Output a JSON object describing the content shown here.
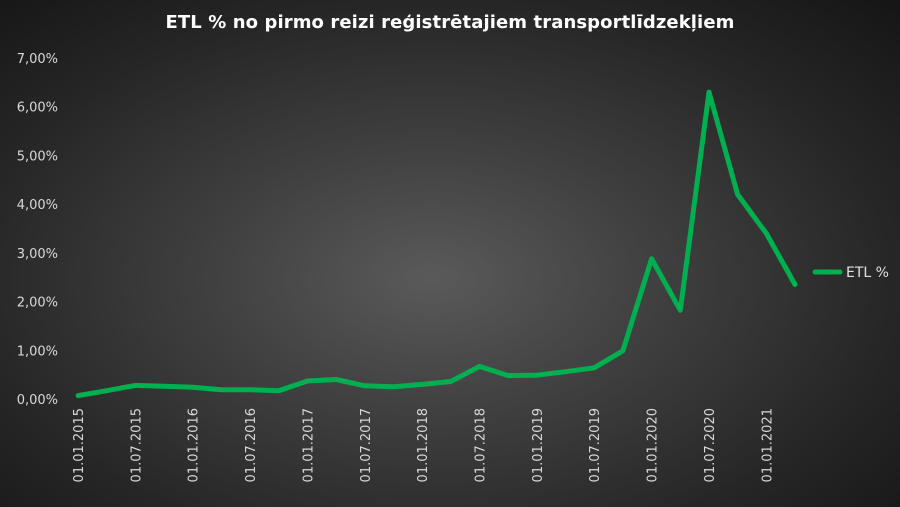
{
  "chart_data": {
    "type": "line",
    "title": "ETL % no pirmo reizi reģistrētajiem transportlīdzekļiem",
    "xlabel": "",
    "ylabel": "",
    "ylim": [
      0,
      7
    ],
    "y_ticks": [
      "0,00%",
      "1,00%",
      "2,00%",
      "3,00%",
      "4,00%",
      "5,00%",
      "6,00%",
      "7,00%"
    ],
    "x_tick_labels": [
      "01.01.2015",
      "01.07.2015",
      "01.01.2016",
      "01.07.2016",
      "01.01.2017",
      "01.07.2017",
      "01.01.2018",
      "01.07.2018",
      "01.01.2019",
      "01.07.2019",
      "01.01.2020",
      "01.07.2020",
      "01.01.2021"
    ],
    "grid": false,
    "legend_position": "right",
    "line_color": "#00b050",
    "x": [
      "2015-01",
      "2015-04",
      "2015-07",
      "2015-10",
      "2016-01",
      "2016-04",
      "2016-07",
      "2016-10",
      "2017-01",
      "2017-04",
      "2017-07",
      "2017-10",
      "2018-01",
      "2018-04",
      "2018-07",
      "2018-10",
      "2019-01",
      "2019-04",
      "2019-07",
      "2019-10",
      "2020-01",
      "2020-04",
      "2020-07",
      "2020-10",
      "2021-01",
      "2021-04"
    ],
    "series": [
      {
        "name": "ETL %",
        "values": [
          0.07,
          0.17,
          0.28,
          0.26,
          0.24,
          0.19,
          0.19,
          0.17,
          0.37,
          0.4,
          0.27,
          0.25,
          0.3,
          0.36,
          0.67,
          0.48,
          0.49,
          0.56,
          0.64,
          0.99,
          2.88,
          1.82,
          6.3,
          4.2,
          3.4,
          2.35
        ]
      }
    ]
  }
}
